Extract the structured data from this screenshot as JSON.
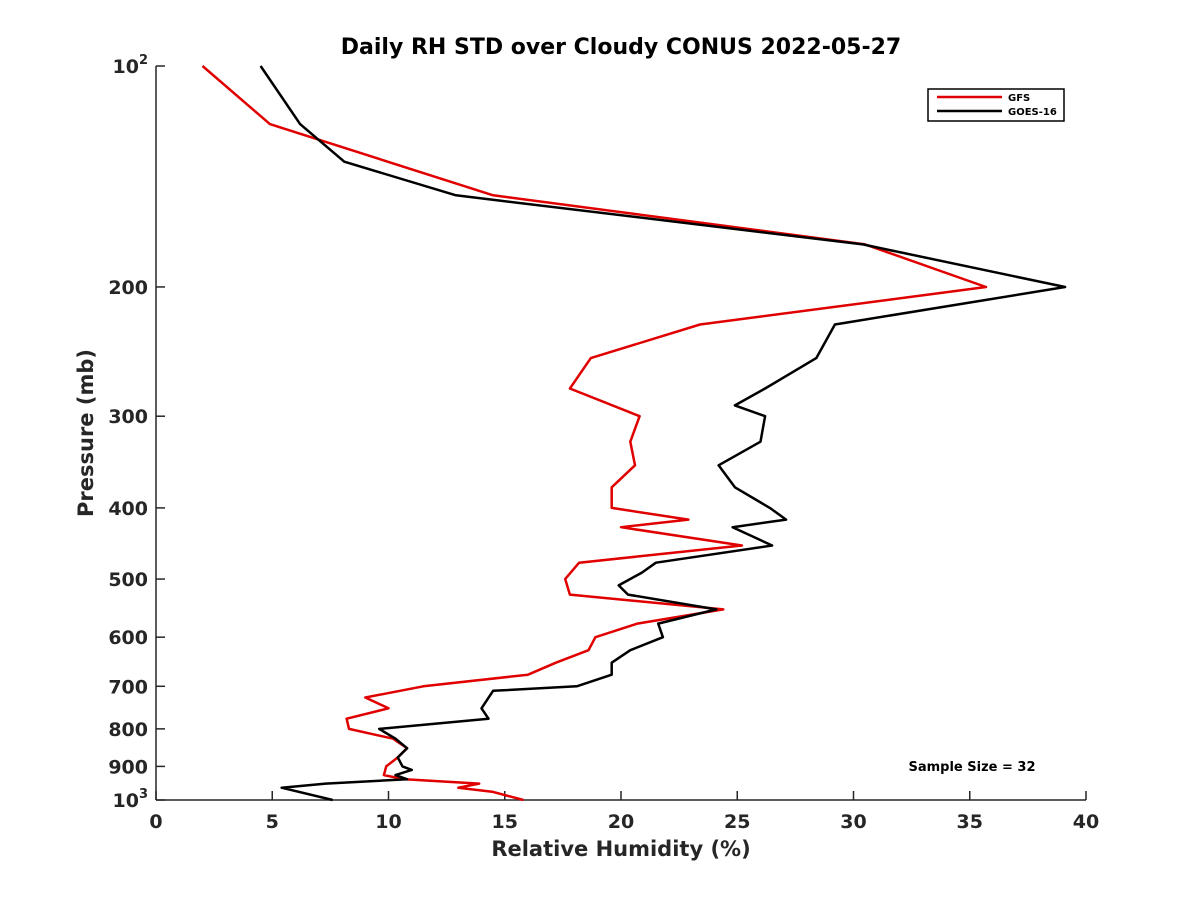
{
  "chart_data": {
    "type": "line",
    "title": "Daily RH STD over Cloudy CONUS 2022-05-27",
    "xlabel": "Relative Humidity (%)",
    "ylabel": "Pressure (mb)",
    "xlim": [
      0,
      40
    ],
    "ylim": [
      100,
      1000
    ],
    "yscale": "log",
    "yreversed": true,
    "xticks": [
      {
        "value": 0,
        "label": "0"
      },
      {
        "value": 5,
        "label": "5"
      },
      {
        "value": 10,
        "label": "10"
      },
      {
        "value": 15,
        "label": "15"
      },
      {
        "value": 20,
        "label": "20"
      },
      {
        "value": 25,
        "label": "25"
      },
      {
        "value": 30,
        "label": "30"
      },
      {
        "value": 35,
        "label": "35"
      },
      {
        "value": 40,
        "label": "40"
      }
    ],
    "yticks": [
      {
        "value": 100,
        "label": "10",
        "sup": "2"
      },
      {
        "value": 200,
        "label": "200"
      },
      {
        "value": 300,
        "label": "300"
      },
      {
        "value": 400,
        "label": "400"
      },
      {
        "value": 500,
        "label": "500"
      },
      {
        "value": 600,
        "label": "600"
      },
      {
        "value": 700,
        "label": "700"
      },
      {
        "value": 800,
        "label": "800"
      },
      {
        "value": 900,
        "label": "900"
      },
      {
        "value": 1000,
        "label": "10",
        "sup": "3"
      }
    ],
    "grid": false,
    "legend_position": "top-right",
    "annotation": "Sample Size = 32",
    "series": [
      {
        "name": "GFS",
        "color": "#e00000",
        "points": [
          [
            2.0,
            100
          ],
          [
            4.9,
            120
          ],
          [
            14.5,
            150
          ],
          [
            30.5,
            175
          ],
          [
            35.7,
            200
          ],
          [
            23.4,
            225
          ],
          [
            18.7,
            250
          ],
          [
            17.8,
            275
          ],
          [
            20.8,
            300
          ],
          [
            20.4,
            325
          ],
          [
            20.6,
            350
          ],
          [
            19.6,
            375
          ],
          [
            19.6,
            400
          ],
          [
            22.9,
            415
          ],
          [
            20.0,
            425
          ],
          [
            25.2,
            450
          ],
          [
            18.2,
            475
          ],
          [
            17.6,
            500
          ],
          [
            17.8,
            525
          ],
          [
            24.4,
            550
          ],
          [
            20.7,
            575
          ],
          [
            18.9,
            600
          ],
          [
            18.6,
            625
          ],
          [
            17.2,
            650
          ],
          [
            16.0,
            675
          ],
          [
            11.5,
            700
          ],
          [
            9.0,
            725
          ],
          [
            10.0,
            750
          ],
          [
            8.2,
            775
          ],
          [
            8.3,
            800
          ],
          [
            10.2,
            825
          ],
          [
            10.8,
            850
          ],
          [
            10.4,
            875
          ],
          [
            9.9,
            900
          ],
          [
            9.8,
            925
          ],
          [
            10.7,
            937
          ],
          [
            13.9,
            950
          ],
          [
            13.0,
            962
          ],
          [
            14.5,
            975
          ],
          [
            15.8,
            1000
          ]
        ]
      },
      {
        "name": "GOES-16",
        "color": "#000000",
        "points": [
          [
            4.5,
            100
          ],
          [
            6.2,
            120
          ],
          [
            8.1,
            135
          ],
          [
            12.9,
            150
          ],
          [
            30.4,
            175
          ],
          [
            39.1,
            200
          ],
          [
            29.2,
            225
          ],
          [
            28.4,
            250
          ],
          [
            26.2,
            275
          ],
          [
            24.9,
            290
          ],
          [
            26.2,
            300
          ],
          [
            26.0,
            325
          ],
          [
            24.2,
            350
          ],
          [
            24.9,
            375
          ],
          [
            26.4,
            400
          ],
          [
            27.1,
            415
          ],
          [
            24.8,
            425
          ],
          [
            26.5,
            450
          ],
          [
            21.5,
            475
          ],
          [
            20.9,
            490
          ],
          [
            19.9,
            510
          ],
          [
            20.3,
            525
          ],
          [
            24.1,
            550
          ],
          [
            21.6,
            575
          ],
          [
            21.8,
            600
          ],
          [
            20.4,
            625
          ],
          [
            19.6,
            650
          ],
          [
            19.6,
            675
          ],
          [
            18.1,
            700
          ],
          [
            14.5,
            710
          ],
          [
            14.0,
            750
          ],
          [
            14.3,
            775
          ],
          [
            9.6,
            800
          ],
          [
            10.3,
            825
          ],
          [
            10.8,
            850
          ],
          [
            10.4,
            875
          ],
          [
            10.6,
            900
          ],
          [
            11.0,
            910
          ],
          [
            10.3,
            925
          ],
          [
            10.8,
            937
          ],
          [
            7.3,
            950
          ],
          [
            5.4,
            962
          ],
          [
            7.6,
            1000
          ]
        ]
      }
    ]
  }
}
